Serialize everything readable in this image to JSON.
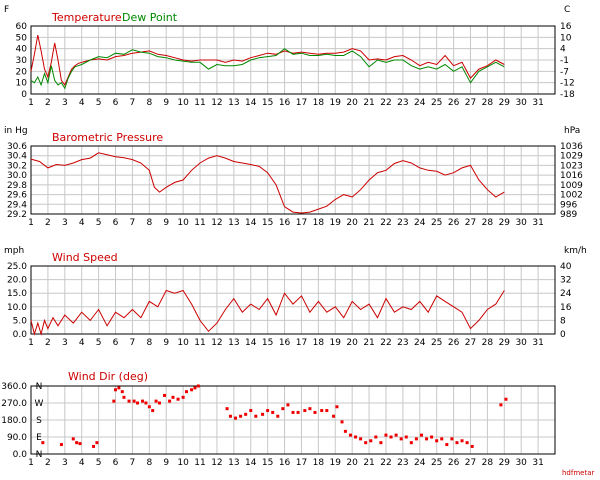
{
  "credit": "hdfmetar",
  "x_day_labels": [
    "1",
    "2",
    "3",
    "4",
    "5",
    "6",
    "7",
    "8",
    "9",
    "10",
    "11",
    "12",
    "13",
    "14",
    "15",
    "16",
    "17",
    "18",
    "19",
    "20",
    "21",
    "22",
    "23",
    "24",
    "25",
    "26",
    "27",
    "28",
    "29",
    "30",
    "31"
  ],
  "chart_data": [
    {
      "type": "line",
      "title": "Temperature",
      "title2": "Dew Point",
      "left_unit": "F",
      "right_unit": "C",
      "xlim": [
        1,
        32
      ],
      "ylim": [
        0,
        60
      ],
      "y_ticks": [
        0,
        10,
        20,
        30,
        40,
        50,
        60
      ],
      "right_ticks": [
        "16",
        "10",
        "4",
        "-1",
        "-7",
        "-12",
        "-18"
      ],
      "grid": true,
      "colors": {
        "temp": "#cc0000",
        "dew": "#008800"
      },
      "series": [
        {
          "name": "Temperature",
          "color": "#cc0000",
          "x": [
            1.0,
            1.2,
            1.4,
            1.6,
            1.8,
            2.0,
            2.2,
            2.4,
            2.6,
            2.8,
            3.0,
            3.2,
            3.4,
            3.6,
            3.8,
            4.0,
            4.5,
            5.0,
            5.5,
            6.0,
            6.5,
            7.0,
            7.5,
            8.0,
            8.5,
            9.0,
            9.5,
            10.0,
            10.5,
            11.0,
            11.5,
            12.0,
            12.5,
            13.0,
            13.5,
            14.0,
            14.5,
            15.0,
            15.5,
            16.0,
            16.5,
            17.0,
            17.5,
            18.0,
            18.5,
            19.0,
            19.5,
            20.0,
            20.5,
            21.0,
            21.5,
            22.0,
            22.5,
            23.0,
            23.5,
            24.0,
            24.5,
            25.0,
            25.5,
            26.0,
            26.5,
            27.0,
            27.5,
            28.0,
            28.5,
            29.0
          ],
          "y": [
            20,
            35,
            52,
            38,
            22,
            15,
            28,
            45,
            30,
            12,
            8,
            15,
            22,
            25,
            27,
            28,
            30,
            31,
            30,
            33,
            34,
            36,
            37,
            38,
            35,
            34,
            32,
            30,
            29,
            30,
            30,
            30,
            28,
            30,
            29,
            32,
            34,
            36,
            35,
            38,
            36,
            37,
            36,
            35,
            36,
            36,
            37,
            40,
            38,
            30,
            31,
            30,
            33,
            34,
            30,
            25,
            28,
            26,
            34,
            25,
            28,
            14,
            22,
            25,
            30,
            26
          ]
        },
        {
          "name": "Dew Point",
          "color": "#008800",
          "x": [
            1.0,
            1.2,
            1.4,
            1.6,
            1.8,
            2.0,
            2.2,
            2.4,
            2.6,
            2.8,
            3.0,
            3.2,
            3.4,
            3.6,
            3.8,
            4.0,
            4.5,
            5.0,
            5.5,
            6.0,
            6.5,
            7.0,
            7.5,
            8.0,
            8.5,
            9.0,
            9.5,
            10.0,
            10.5,
            11.0,
            11.5,
            12.0,
            12.5,
            13.0,
            13.5,
            14.0,
            14.5,
            15.0,
            15.5,
            16.0,
            16.5,
            17.0,
            17.5,
            18.0,
            18.5,
            19.0,
            19.5,
            20.0,
            20.5,
            21.0,
            21.5,
            22.0,
            22.5,
            23.0,
            23.5,
            24.0,
            24.5,
            25.0,
            25.5,
            26.0,
            26.5,
            27.0,
            27.5,
            28.0,
            28.5,
            29.0
          ],
          "y": [
            12,
            10,
            15,
            8,
            18,
            10,
            25,
            12,
            8,
            10,
            5,
            14,
            20,
            24,
            25,
            26,
            30,
            33,
            32,
            36,
            35,
            39,
            37,
            36,
            33,
            32,
            30,
            29,
            28,
            28,
            22,
            26,
            25,
            25,
            26,
            30,
            32,
            33,
            34,
            40,
            35,
            36,
            34,
            34,
            35,
            34,
            34,
            38,
            33,
            24,
            30,
            28,
            30,
            30,
            25,
            22,
            24,
            22,
            26,
            20,
            24,
            10,
            20,
            24,
            28,
            24
          ]
        }
      ]
    },
    {
      "type": "line",
      "title": "Barometric Pressure",
      "left_unit": "in Hg",
      "right_unit": "hPa",
      "xlim": [
        1,
        32
      ],
      "ylim": [
        29.2,
        30.6
      ],
      "y_ticks": [
        29.2,
        29.4,
        29.6,
        29.8,
        30.0,
        30.2,
        30.4,
        30.6
      ],
      "y_tick_labels": [
        "29.2",
        "29.4",
        "29.6",
        "29.8",
        "30.0",
        "30.2",
        "30.4",
        "30.6"
      ],
      "right_ticks": [
        "1036",
        "1029",
        "1023",
        "1016",
        "1009",
        "1002",
        "996",
        "989"
      ],
      "grid": true,
      "series": [
        {
          "name": "Barometric Pressure",
          "color": "#cc0000",
          "x": [
            1.0,
            1.5,
            2.0,
            2.5,
            3.0,
            3.5,
            4.0,
            4.5,
            5.0,
            5.5,
            6.0,
            6.5,
            7.0,
            7.5,
            8.0,
            8.3,
            8.6,
            9.0,
            9.5,
            10.0,
            10.5,
            11.0,
            11.5,
            12.0,
            12.5,
            13.0,
            13.5,
            14.0,
            14.5,
            15.0,
            15.5,
            16.0,
            16.5,
            17.0,
            17.5,
            18.0,
            18.5,
            19.0,
            19.5,
            20.0,
            20.5,
            21.0,
            21.5,
            22.0,
            22.5,
            23.0,
            23.5,
            24.0,
            24.5,
            25.0,
            25.5,
            26.0,
            26.5,
            27.0,
            27.5,
            28.0,
            28.5,
            29.0
          ],
          "y": [
            30.33,
            30.28,
            30.15,
            30.22,
            30.2,
            30.25,
            30.32,
            30.35,
            30.46,
            30.42,
            30.38,
            30.36,
            30.32,
            30.25,
            30.1,
            29.75,
            29.65,
            29.75,
            29.85,
            29.9,
            30.1,
            30.25,
            30.35,
            30.4,
            30.35,
            30.28,
            30.25,
            30.22,
            30.18,
            30.05,
            29.8,
            29.35,
            29.24,
            29.22,
            29.24,
            29.3,
            29.36,
            29.5,
            29.6,
            29.55,
            29.7,
            29.9,
            30.05,
            30.1,
            30.24,
            30.3,
            30.25,
            30.15,
            30.1,
            30.08,
            30.0,
            30.05,
            30.15,
            30.2,
            29.9,
            29.7,
            29.55,
            29.65
          ]
        }
      ]
    },
    {
      "type": "line",
      "title": "Wind Speed",
      "left_unit": "mph",
      "right_unit": "km/h",
      "xlim": [
        1,
        32
      ],
      "ylim": [
        0,
        25
      ],
      "y_ticks": [
        0,
        5,
        10,
        15,
        20,
        25
      ],
      "y_tick_labels": [
        "0.0",
        "5.0",
        "10.0",
        "15.0",
        "20.0",
        "25.0"
      ],
      "right_ticks": [
        "40",
        "32",
        "24",
        "16",
        "8",
        "0"
      ],
      "grid": true,
      "series": [
        {
          "name": "Wind Speed",
          "color": "#cc0000",
          "x": [
            1.0,
            1.2,
            1.4,
            1.6,
            1.8,
            2.0,
            2.3,
            2.6,
            3.0,
            3.5,
            4.0,
            4.5,
            5.0,
            5.5,
            6.0,
            6.5,
            7.0,
            7.5,
            8.0,
            8.5,
            9.0,
            9.5,
            10.0,
            10.5,
            11.0,
            11.5,
            12.0,
            12.5,
            13.0,
            13.5,
            14.0,
            14.5,
            15.0,
            15.5,
            16.0,
            16.5,
            17.0,
            17.5,
            18.0,
            18.5,
            19.0,
            19.5,
            20.0,
            20.5,
            21.0,
            21.5,
            22.0,
            22.5,
            23.0,
            23.5,
            24.0,
            24.5,
            25.0,
            25.5,
            26.0,
            26.5,
            27.0,
            27.5,
            28.0,
            28.5,
            29.0
          ],
          "y": [
            5,
            0,
            4,
            0,
            5,
            2,
            6,
            3,
            7,
            4,
            8,
            5,
            9,
            3,
            8,
            6,
            9,
            6,
            12,
            10,
            16,
            15,
            16,
            11,
            5,
            1,
            4,
            9,
            13,
            8,
            11,
            9,
            13,
            7,
            15,
            11,
            14,
            8,
            12,
            8,
            10,
            6,
            12,
            9,
            11,
            6,
            13,
            8,
            10,
            9,
            12,
            8,
            14,
            12,
            10,
            8,
            2,
            5,
            9,
            11,
            16
          ]
        }
      ]
    },
    {
      "type": "scatter",
      "title": "Wind Dir (deg)",
      "xlim": [
        1,
        32
      ],
      "ylim": [
        0,
        360
      ],
      "y_ticks": [
        0,
        90,
        180,
        270,
        360
      ],
      "y_tick_labels": [
        "0.0",
        "90.0",
        "180.0",
        "270.0",
        "360.0"
      ],
      "compass_labels": [
        "N",
        "W",
        "S",
        "E",
        "N"
      ],
      "grid": true,
      "series": [
        {
          "name": "Wind Dir",
          "color": "#ee0000",
          "x": [
            1.7,
            2.8,
            3.5,
            3.7,
            3.9,
            4.7,
            4.9,
            5.9,
            6.0,
            6.2,
            6.4,
            6.5,
            6.8,
            7.1,
            7.3,
            7.6,
            7.8,
            8.0,
            8.2,
            8.4,
            8.6,
            8.9,
            9.2,
            9.4,
            9.7,
            10.0,
            10.2,
            10.5,
            10.7,
            10.9,
            12.6,
            12.8,
            13.1,
            13.4,
            13.7,
            14.0,
            14.3,
            14.7,
            15.0,
            15.3,
            15.6,
            15.9,
            16.2,
            16.5,
            16.8,
            17.2,
            17.5,
            17.8,
            18.2,
            18.5,
            18.9,
            19.1,
            19.4,
            19.6,
            19.9,
            20.2,
            20.5,
            20.8,
            21.1,
            21.4,
            21.7,
            22.0,
            22.3,
            22.6,
            22.9,
            23.2,
            23.5,
            23.8,
            24.1,
            24.4,
            24.7,
            25.0,
            25.3,
            25.6,
            25.9,
            26.2,
            26.5,
            26.8,
            27.1,
            28.8,
            29.1
          ],
          "y": [
            60,
            50,
            80,
            60,
            55,
            40,
            60,
            280,
            340,
            350,
            330,
            300,
            280,
            280,
            270,
            280,
            270,
            250,
            230,
            280,
            270,
            310,
            280,
            300,
            290,
            300,
            330,
            340,
            350,
            360,
            240,
            200,
            190,
            200,
            210,
            230,
            200,
            210,
            230,
            220,
            200,
            240,
            260,
            220,
            220,
            230,
            240,
            220,
            230,
            230,
            200,
            250,
            170,
            120,
            100,
            90,
            80,
            60,
            70,
            90,
            60,
            100,
            90,
            100,
            80,
            90,
            60,
            80,
            100,
            80,
            90,
            70,
            80,
            50,
            80,
            60,
            70,
            60,
            40,
            260,
            290
          ]
        }
      ]
    }
  ]
}
